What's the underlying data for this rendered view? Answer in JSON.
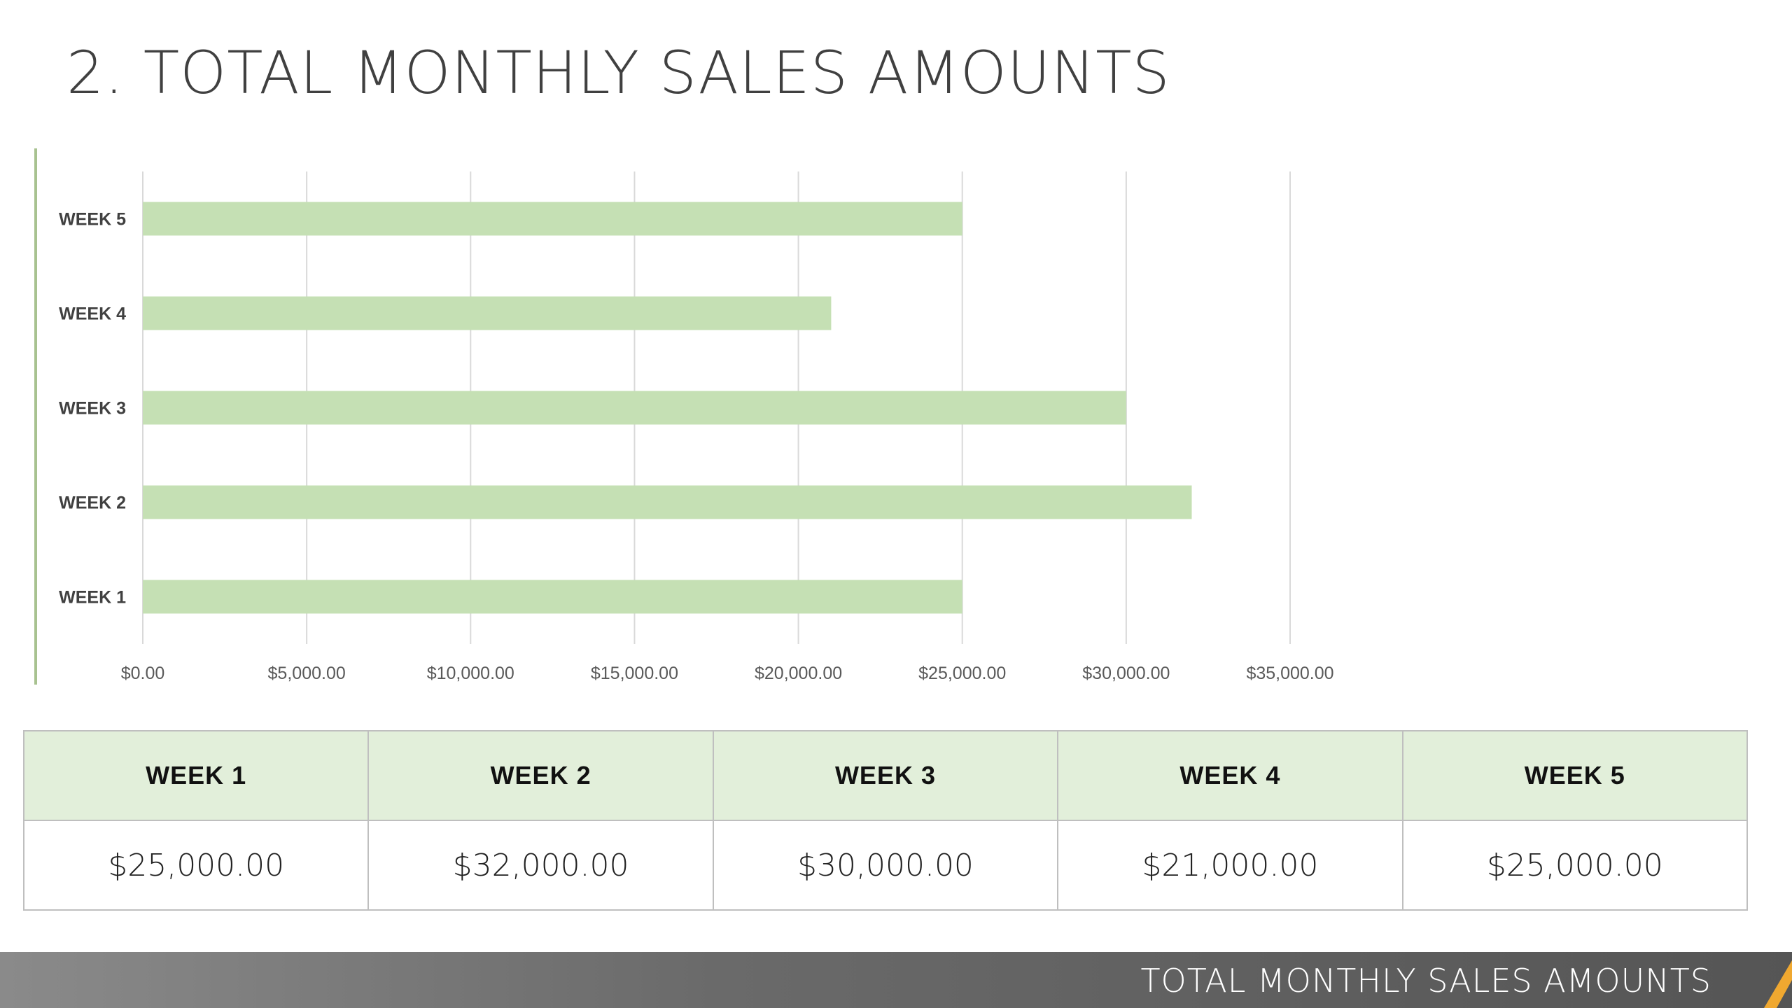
{
  "slide": {
    "title": "2. TOTAL MONTHLY SALES AMOUNTS",
    "footer_text": "TOTAL MONTHLY SALES AMOUNTS"
  },
  "colors": {
    "bar": "#c5e0b4",
    "header_fill": "#e2efda",
    "accent": "#a8c290",
    "footer_gold": "#f0a830",
    "grid": "#d9d9d9"
  },
  "chart_data": {
    "type": "bar",
    "orientation": "horizontal",
    "categories": [
      "WEEK 1",
      "WEEK 2",
      "WEEK 3",
      "WEEK 4",
      "WEEK 5"
    ],
    "values": [
      25000,
      32000,
      30000,
      21000,
      25000
    ],
    "xlim": [
      0,
      35000
    ],
    "x_ticks": [
      0,
      5000,
      10000,
      15000,
      20000,
      25000,
      30000,
      35000
    ],
    "x_tick_labels": [
      "$0.00",
      "$5,000.00",
      "$10,000.00",
      "$15,000.00",
      "$20,000.00",
      "$25,000.00",
      "$30,000.00",
      "$35,000.00"
    ],
    "grid": true,
    "legend": "none"
  },
  "table": {
    "headers": [
      "WEEK 1",
      "WEEK 2",
      "WEEK 3",
      "WEEK 4",
      "WEEK 5"
    ],
    "values": [
      "$25,000.00",
      "$32,000.00",
      "$30,000.00",
      "$21,000.00",
      "$25,000.00"
    ]
  }
}
